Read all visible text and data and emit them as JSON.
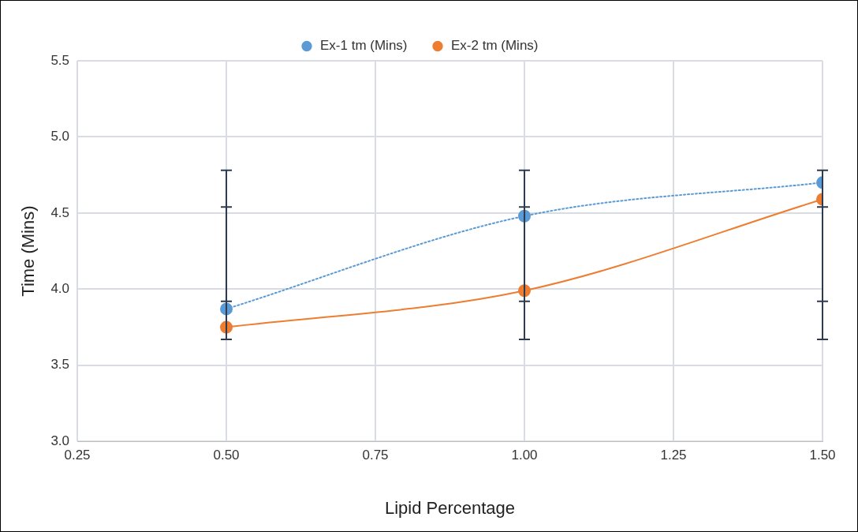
{
  "chart_data": {
    "type": "line",
    "xlabel": "Lipid Percentage",
    "ylabel": "Time (Mins)",
    "x": [
      0.5,
      1.0,
      1.5
    ],
    "series": [
      {
        "name": "Ex-1 tm (Mins)",
        "color": "#5b9bd5",
        "line_style": "dotted",
        "values": [
          3.87,
          4.48,
          4.7
        ],
        "errors": [
          [
            3.92,
            4.78
          ],
          [
            3.92,
            4.78
          ],
          [
            3.92,
            4.78
          ]
        ]
      },
      {
        "name": "Ex-2 tm (Mins)",
        "color": "#ed7d31",
        "line_style": "solid",
        "values": [
          3.75,
          3.99,
          4.59
        ],
        "errors": [
          [
            3.67,
            4.54
          ],
          [
            3.67,
            4.54
          ],
          [
            3.67,
            4.54
          ]
        ]
      }
    ],
    "xlim": [
      0.25,
      1.5
    ],
    "xticks": [
      {
        "value": 0.25,
        "label": "0.25"
      },
      {
        "value": 0.5,
        "label": "0.50"
      },
      {
        "value": 0.75,
        "label": "0.75"
      },
      {
        "value": 1.0,
        "label": "1.00"
      },
      {
        "value": 1.25,
        "label": "1.25"
      },
      {
        "value": 1.5,
        "label": "1.50"
      }
    ],
    "ylim": [
      3.0,
      5.5
    ],
    "yticks": [
      {
        "value": 3.0,
        "label": "3.0"
      },
      {
        "value": 3.5,
        "label": "3.5"
      },
      {
        "value": 4.0,
        "label": "4.0"
      },
      {
        "value": 4.5,
        "label": "4.5"
      },
      {
        "value": 5.0,
        "label": "5.0"
      },
      {
        "value": 5.5,
        "label": "5.5"
      }
    ],
    "grid": true,
    "legend": "top",
    "marker": "circle"
  }
}
